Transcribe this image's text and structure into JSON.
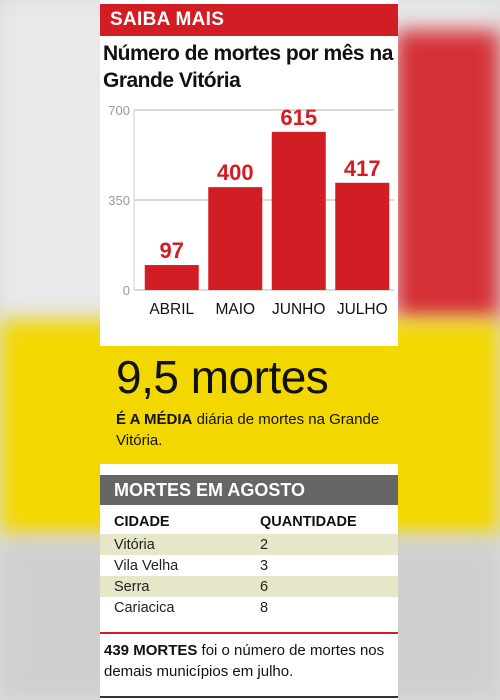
{
  "header": {
    "label": "SAIBA MAIS"
  },
  "chart_data": {
    "type": "bar",
    "title": "Número de mortes por mês na Grande Vitória",
    "categories": [
      "ABRIL",
      "MAIO",
      "JUNHO",
      "JULHO"
    ],
    "values": [
      97,
      400,
      615,
      417
    ],
    "ylim": [
      0,
      700
    ],
    "yticks": [
      0,
      350,
      700
    ],
    "bar_color": "#d21d24",
    "grid": false
  },
  "average": {
    "big": "9,5 mortes",
    "lead": "É A MÉDIA",
    "text": " diária de mortes na Grande Vitória."
  },
  "table": {
    "title": "MORTES EM AGOSTO",
    "headers": [
      "CIDADE",
      "QUANTIDADE"
    ],
    "rows": [
      {
        "city": "Vitória",
        "count": "2"
      },
      {
        "city": "Vila Velha",
        "count": "3"
      },
      {
        "city": "Serra",
        "count": "6"
      },
      {
        "city": "Cariacica",
        "count": "8"
      }
    ]
  },
  "note": {
    "lead": "439 MORTES",
    "text": " foi o número de mortes nos demais municípios em julho."
  },
  "colors": {
    "red": "#d21d24",
    "yellow": "#f3d800",
    "gray": "#666666"
  }
}
